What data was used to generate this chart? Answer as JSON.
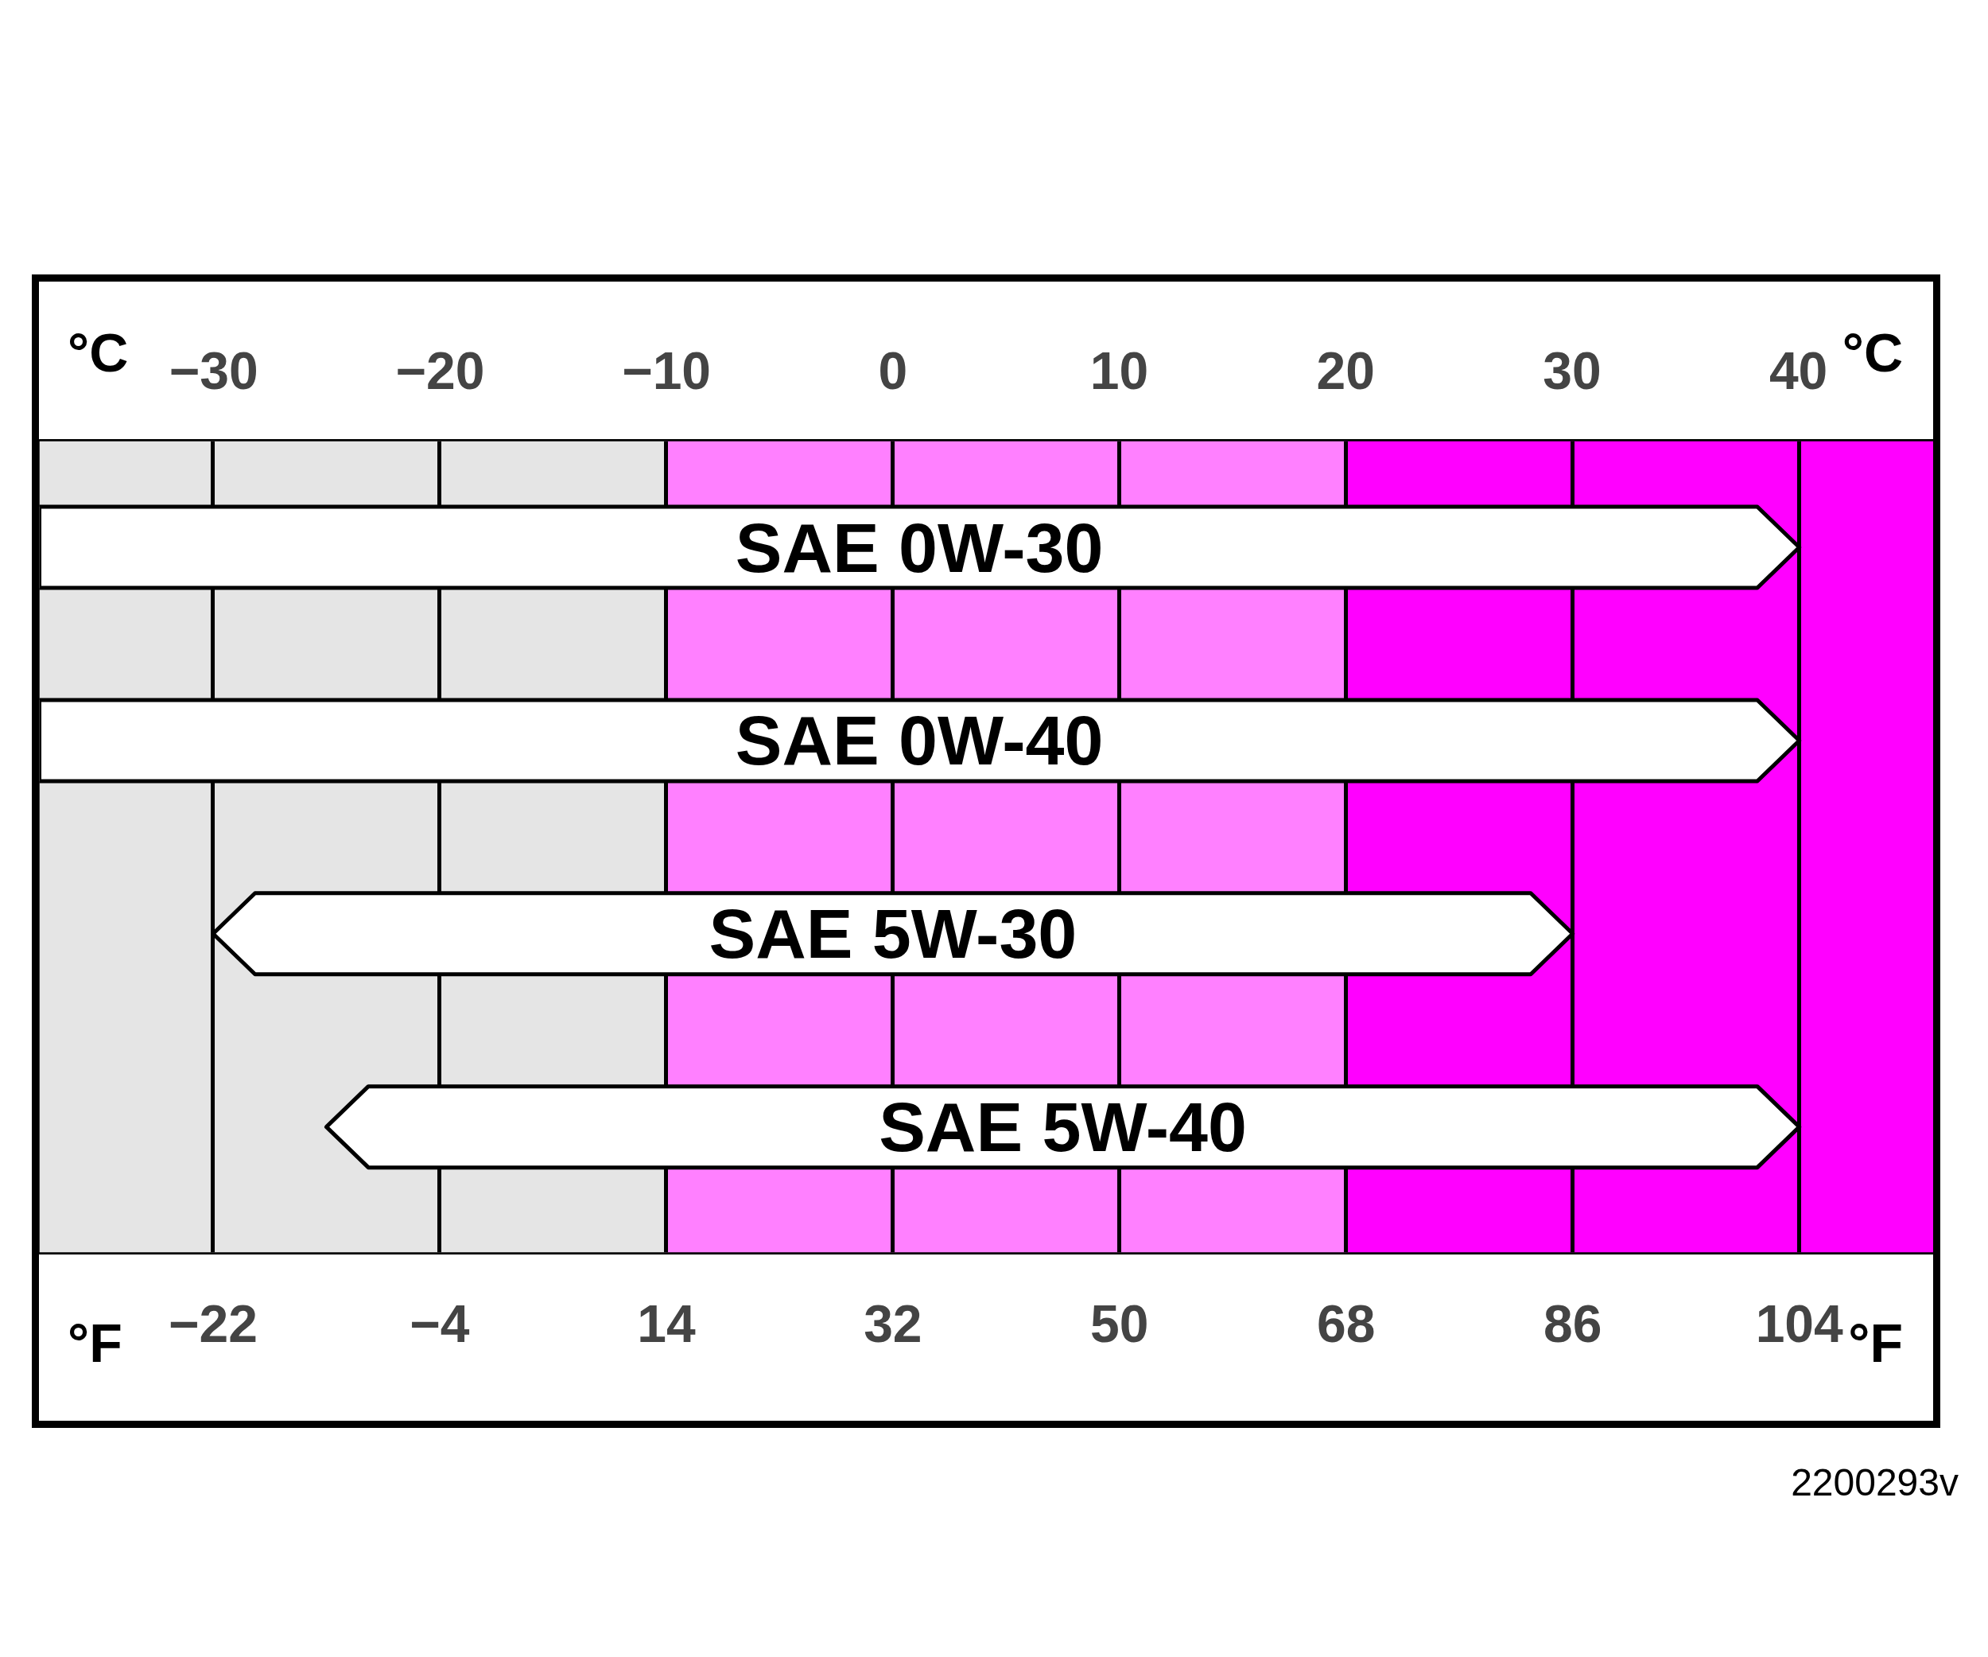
{
  "chart_data": {
    "type": "bar",
    "orientation": "horizontal",
    "categories": [
      "SAE 0W-30",
      "SAE 0W-40",
      "SAE 5W-30",
      "SAE 5W-40"
    ],
    "base": [
      -35.8,
      -35.8,
      -22,
      -13
    ],
    "values": [
      139.8,
      139.8,
      108,
      117
    ],
    "color": "#ffffff",
    "xlim": [
      -35.8,
      115.8
    ],
    "xticks": [
      -22,
      -4,
      14,
      32,
      50,
      68,
      86,
      104
    ],
    "xlabel": "°F",
    "x2lim": [
      -37.7,
      46.6
    ],
    "x2ticks": [
      -30,
      -20,
      -10,
      0,
      10,
      20,
      30,
      40
    ],
    "x2label": "°C",
    "bands": [
      {
        "axis": "x",
        "from": -35.8,
        "to": 14,
        "color": "#e5e5e5"
      },
      {
        "axis": "x",
        "from": 14,
        "to": 68,
        "color": "#ff80ff"
      },
      {
        "axis": "x",
        "from": 68,
        "to": 115.8,
        "color": "#ff00ff"
      }
    ],
    "grid": "x",
    "annotations": [
      "2200293v"
    ]
  }
}
